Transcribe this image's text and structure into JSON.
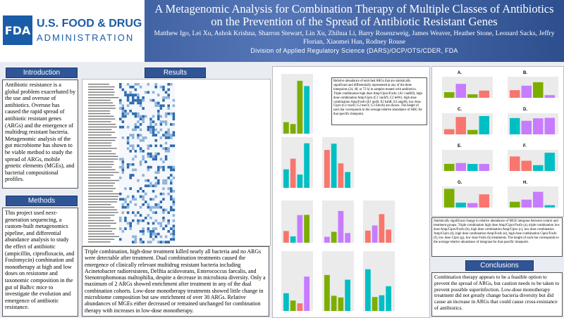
{
  "header": {
    "logo": {
      "mark": "FDA",
      "line1": "U.S. FOOD & DRUG",
      "line2": "ADMINISTRATION"
    },
    "title": "A Metagenomic Analysis for Combination Therapy of Multiple Classes of Antibiotics on the Prevention of the Spread of Antibiotic Resistant Genes",
    "authors": "Matthew Igo, Lei Xu, Ashok Krishna, Sharron Stewart, Lin Xu, Zhihua Li, Barry Rosenzweig, James Weaver, Heather Stone, Leonard Sacks, Jeffry Florian, Xiaomei Han, Rodney Rouse",
    "affiliation": "Division of Applied Regulatory Science (DARS)/OCP/OTS/CDER, FDA"
  },
  "introduction": {
    "heading": "Introduction",
    "text": "Antibiotic resistance is a global problem exacerbated by the use and overuse of antibiotics. Overuse has caused the rapid spread of antibiotic resistant genes (ARGs) and the emergence of multidrug resistant bacteria. Metagenomic analysis of the gut microbiome has shown to be viable method to study the spread of ARGs, mobile genetic elements (MGEs), and bacterial compositional profiles."
  },
  "methods": {
    "heading": "Methods",
    "text": "This project used next-generation sequencing, a custom-built metagenomics pipeline, and differential abundance analysis to study the effect of antibiotic (ampicillin, ciprofloxacin, and Fosfomycin) combination and monotherapy at high and low doses on resistome and taxonomic composition in the gut of Balb/c mice to investigate the evolution and emergence of antibiotic resistance."
  },
  "results": {
    "heading": "Results",
    "text": "Triple combination, high-dose treatment killed nearly all bacteria and no ARGs were detectable after treatment. Dual combination treatments caused the emergence of clinically relevant multidrug resistant bacteria including Acinetobacter radioresistens, Delftia acidovorans, Enterococcus faecalis, and Stenotrophomonas maltophilia, despite a decrease in microbiota diversity. Only a maximum of 2 ARGs showed enrichment after treatment in any of the dual combination cohorts. Low-dose monotherapy treatments showed little change in microbiome composition but saw enrichment of over 30 ARGs. Relative abundances of MGEs either decreased or remained unchanged for combination therapy with increases in low-dose monotherapy.",
    "arg_caption": "Relative abundance of enriched ARGs that are statistically significant and differentially represented at any of the three timepoints (24, 48, or 72 h) in samples treated with antibiotics. Triple combination high dose Amp/Cipro/Fosfo; (A1 vanRD), high dose combination Amp/Cipro (C1 vanSN, C2 tetW), high dose combination Amp/Fosfo (E1 qnrB, E2 bahR, E3 ampH), low dose Cipro (G1 msrD, G2 mexY, G3 EmrA) are shown. The height of each bar corresponds to the average relative abundance of ARG for that specific timepoint.",
    "mge_panels": [
      "A.",
      "B.",
      "C.",
      "D.",
      "E.",
      "F.",
      "G.",
      "H."
    ],
    "mge_caption": "Statistically significant change in relative abundance of MGE integrase between control and treatment groups. Triple combination high dose Amp/Cipro/Fosfo (a), triple combination low dose Amp/Cipro/Fosfo (b), high dose combination Amp/Cipro (c), low dose combination Amp/Cipro (d), high dose combination Amp/Fosfo (e), high dose combination Cipro/Fosfo (f), low dose Cipro (g), low dose Fosfo (h) treatments. The height of each bar corresponds to the average relative abundance of integrase for that specific timepoint."
  },
  "conclusions": {
    "heading": "Conclusions",
    "text": "Combination therapy appears to be a feasible option to prevent the spread of ARGs, but caution needs to be taken to prevent possible superinfection. Low-dose monotherapy treatment did not greatly change bacteria diversity but did cause an increase in ARGs that could cause cross-resistance of antibiotics."
  }
}
